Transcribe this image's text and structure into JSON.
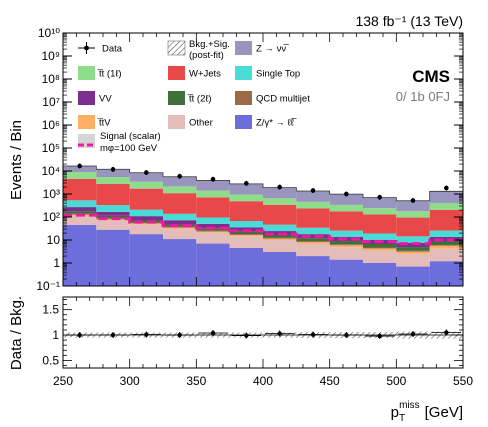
{
  "header": {
    "lumi": "138 fb⁻¹ (13 TeV)",
    "experiment": "CMS",
    "category": "0/ 1b 0FJ"
  },
  "legend": [
    {
      "key": "data",
      "label": "Data",
      "type": "marker",
      "color": "#000000"
    },
    {
      "key": "bkgsig",
      "label": "Bkg.+Sig.",
      "label2": "(post-fit)",
      "type": "hatch",
      "color": "#555555"
    },
    {
      "key": "znunu",
      "label": "Z → νν̅",
      "type": "box",
      "color": "#9A95BF"
    },
    {
      "key": "ttbar1l",
      "label": "t̅t (1ℓ)",
      "type": "box",
      "color": "#8FDC8A"
    },
    {
      "key": "wjets",
      "label": "W+Jets",
      "type": "box",
      "color": "#E8484A"
    },
    {
      "key": "singletop",
      "label": "Single Top",
      "type": "box",
      "color": "#49DCD6"
    },
    {
      "key": "vv",
      "label": "VV",
      "type": "box",
      "color": "#7C2E8E"
    },
    {
      "key": "ttbar2l",
      "label": "t̅t (2ℓ)",
      "type": "box",
      "color": "#3E6E3A"
    },
    {
      "key": "qcd",
      "label": "QCD multijet",
      "type": "box",
      "color": "#9C6A45"
    },
    {
      "key": "ttv",
      "label": "t̅tV",
      "type": "box",
      "color": "#FDAF63"
    },
    {
      "key": "other",
      "label": "Other",
      "type": "box",
      "color": "#E4BDBB"
    },
    {
      "key": "zll",
      "label": "Z/γ* → ℓℓ̅",
      "type": "box",
      "color": "#6D6DDB"
    },
    {
      "key": "signal",
      "label": "Signal (scalar)",
      "label2": "mφ=100 GeV",
      "type": "dashed",
      "color": "#F01AA0"
    }
  ],
  "chart_data": {
    "type": "bar",
    "xlabel": "p_T^miss [GeV]",
    "xlabel_main": "p",
    "xlabel_sub": "T",
    "xlabel_sup": "miss",
    "xlabel_unit": "[GeV]",
    "ylabel": "Events / Bin",
    "ratio_ylabel": "Data / Bkg.",
    "xlim": [
      250,
      550
    ],
    "ylim": [
      0.1,
      10000000000
    ],
    "yscale": "log",
    "ratio_ylim": [
      0.35,
      1.75
    ],
    "x_ticks": [
      "250",
      "300",
      "350",
      "400",
      "450",
      "500",
      "550"
    ],
    "x_tick_values": [
      250,
      300,
      350,
      400,
      450,
      500,
      550
    ],
    "y_ticks": [
      "10⁻¹",
      "1",
      "10",
      "10²",
      "10³",
      "10⁴",
      "10⁵",
      "10⁶",
      "10⁷",
      "10⁸",
      "10⁹",
      "10¹⁰"
    ],
    "ratio_y_ticks": [
      "0.5",
      "1",
      "1.5"
    ],
    "ratio_y_tick_values": [
      0.5,
      1.0,
      1.5
    ],
    "bin_edges": [
      250,
      275,
      300,
      325,
      350,
      375,
      400,
      425,
      450,
      475,
      500,
      525,
      550
    ],
    "stack": [
      {
        "key": "zll",
        "values": [
          45,
          28,
          18,
          11,
          7,
          4.5,
          3,
          2,
          1.4,
          1,
          0.7,
          1.2
        ]
      },
      {
        "key": "other",
        "values": [
          70,
          45,
          30,
          20,
          14,
          10,
          7,
          5,
          3.5,
          2.5,
          1.8,
          3
        ]
      },
      {
        "key": "ttv",
        "values": [
          10,
          7,
          5,
          3.5,
          2.5,
          2,
          1.5,
          1.2,
          1,
          0.8,
          0.6,
          1.4
        ]
      },
      {
        "key": "qcd",
        "values": [
          15,
          8,
          5,
          3,
          2,
          1.5,
          1,
          0.8,
          0.6,
          0.4,
          0.3,
          0.5
        ]
      },
      {
        "key": "ttbar2l",
        "values": [
          40,
          25,
          16,
          10,
          7,
          5,
          4,
          3,
          2.5,
          2,
          1.5,
          2.5
        ]
      },
      {
        "key": "vv",
        "values": [
          90,
          55,
          35,
          25,
          18,
          12,
          8,
          6,
          4.5,
          3.5,
          2.5,
          5
        ]
      },
      {
        "key": "singletop",
        "values": [
          260,
          160,
          100,
          65,
          45,
          32,
          22,
          16,
          12,
          9,
          7,
          12
        ]
      },
      {
        "key": "wjets",
        "values": [
          4000,
          2400,
          1500,
          950,
          620,
          420,
          290,
          200,
          150,
          110,
          80,
          180
        ]
      },
      {
        "key": "ttbar1l",
        "values": [
          4500,
          2700,
          1700,
          1050,
          690,
          460,
          310,
          220,
          160,
          115,
          85,
          200
        ]
      },
      {
        "key": "znunu",
        "values": [
          7500,
          6500,
          5000,
          3500,
          2500,
          1800,
          1250,
          900,
          650,
          450,
          330,
          900
        ]
      }
    ],
    "data_points": [
      16500,
      11800,
      8600,
      5900,
      4400,
      2900,
      2000,
      1420,
      1000,
      720,
      520,
      1820
    ],
    "signal_values": [
      120,
      85,
      60,
      42,
      33,
      25,
      18,
      14,
      11,
      8.5,
      7,
      10
    ],
    "ratio_values": [
      1.0,
      1.0,
      1.01,
      1.0,
      1.04,
      0.99,
      1.03,
      1.01,
      1.0,
      0.98,
      1.02,
      1.05
    ],
    "ratio_band_halfwidth": [
      0.05,
      0.05,
      0.05,
      0.05,
      0.05,
      0.05,
      0.05,
      0.06,
      0.06,
      0.06,
      0.07,
      0.07
    ],
    "grid": false,
    "legend_placement": "top"
  }
}
